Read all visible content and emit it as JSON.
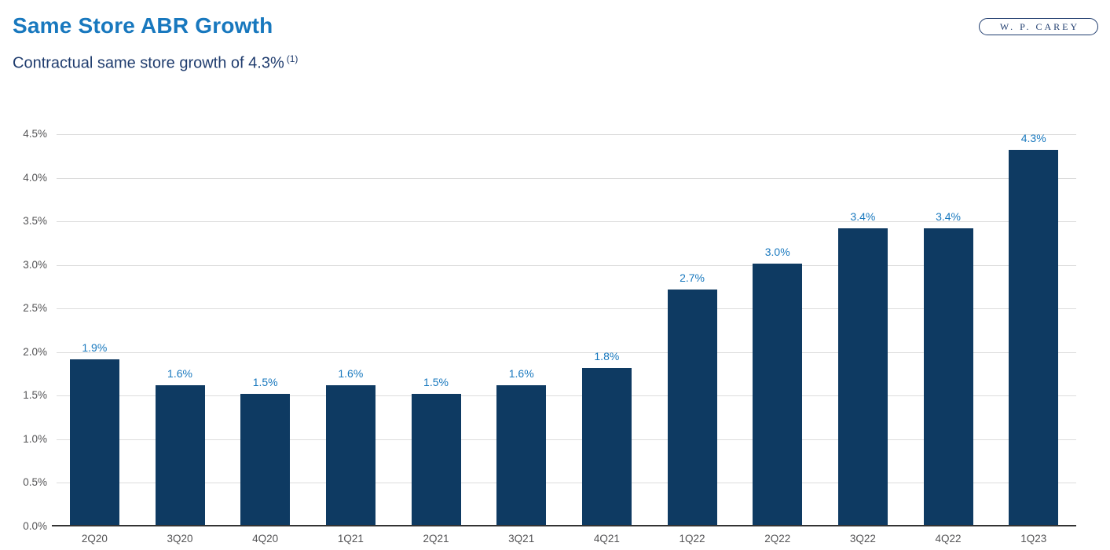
{
  "header": {
    "title": "Same Store ABR Growth",
    "subtitle": "Contractual same store growth of 4.3%",
    "subtitle_superscript": "(1)",
    "logo_text": "W. P. CAREY"
  },
  "colors": {
    "title": "#1878BE",
    "subtitle": "#1F3C6E",
    "logo": "#1F3C6E",
    "bar": "#0E3A62",
    "value_label": "#1878BE",
    "tick_label": "#545456",
    "gridline": "#DCDCDC",
    "axis_line": "#333333",
    "background": "#FFFFFF"
  },
  "chart_data": {
    "type": "bar",
    "title": "Same Store ABR Growth",
    "xlabel": "",
    "ylabel": "",
    "categories": [
      "2Q20",
      "3Q20",
      "4Q20",
      "1Q21",
      "2Q21",
      "3Q21",
      "4Q21",
      "1Q22",
      "2Q22",
      "3Q22",
      "4Q22",
      "1Q23"
    ],
    "values": [
      1.9,
      1.6,
      1.5,
      1.6,
      1.5,
      1.6,
      1.8,
      2.7,
      3.0,
      3.4,
      3.4,
      4.3
    ],
    "value_labels": [
      "1.9%",
      "1.6%",
      "1.5%",
      "1.6%",
      "1.5%",
      "1.6%",
      "1.8%",
      "2.7%",
      "3.0%",
      "3.4%",
      "3.4%",
      "4.3%"
    ],
    "y_ticks": [
      4.5,
      4.0,
      3.5,
      3.0,
      2.5,
      2.0,
      1.5,
      1.0,
      0.5,
      0.0
    ],
    "y_tick_labels": [
      "4.5%",
      "4.0%",
      "3.5%",
      "3.0%",
      "2.5%",
      "2.0%",
      "1.5%",
      "1.0%",
      "0.5%",
      "0.0%"
    ],
    "ylim": [
      0,
      4.5
    ],
    "grid": "horizontal",
    "legend": "none"
  }
}
